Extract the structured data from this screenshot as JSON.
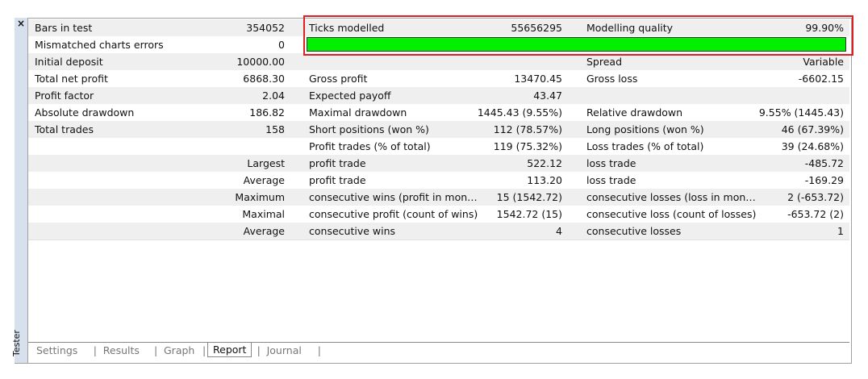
{
  "panel": {
    "close": "×",
    "side_label": "Tester"
  },
  "table": {
    "rows": [
      [
        "Bars in test",
        "354052",
        "Ticks modelled",
        "55656295",
        "Modelling quality",
        "99.90%"
      ],
      [
        "Mismatched charts errors",
        "0"
      ],
      [
        "Initial deposit",
        "10000.00",
        null,
        null,
        "Spread",
        "Variable"
      ],
      [
        "Total net profit",
        "6868.30",
        "Gross profit",
        "13470.45",
        "Gross loss",
        "-6602.15"
      ],
      [
        "Profit factor",
        "2.04",
        "Expected payoff",
        "43.47",
        null,
        null
      ],
      [
        "Absolute drawdown",
        "186.82",
        "Maximal drawdown",
        "1445.43 (9.55%)",
        "Relative drawdown",
        "9.55% (1445.43)"
      ],
      [
        "Total trades",
        "158",
        "Short positions (won %)",
        "112 (78.57%)",
        "Long positions (won %)",
        "46 (67.39%)"
      ],
      [
        null,
        null,
        "Profit trades (% of total)",
        "119 (75.32%)",
        "Loss trades (% of total)",
        "39 (24.68%)"
      ],
      [
        null,
        "Largest",
        "profit trade",
        "522.12",
        "loss trade",
        "-485.72"
      ],
      [
        null,
        "Average",
        "profit trade",
        "113.20",
        "loss trade",
        "-169.29"
      ],
      [
        null,
        "Maximum",
        "consecutive wins (profit in mon…",
        "15 (1542.72)",
        "consecutive losses (loss in mon…",
        "2 (-653.72)"
      ],
      [
        null,
        "Maximal",
        "consecutive profit (count of wins)",
        "1542.72 (15)",
        "consecutive loss (count of losses)",
        "-653.72 (2)"
      ],
      [
        null,
        "Average",
        "consecutive wins",
        "4",
        "consecutive losses",
        "1"
      ]
    ]
  },
  "tabs": [
    "Settings",
    "Results",
    "Graph",
    "Report",
    "Journal"
  ]
}
